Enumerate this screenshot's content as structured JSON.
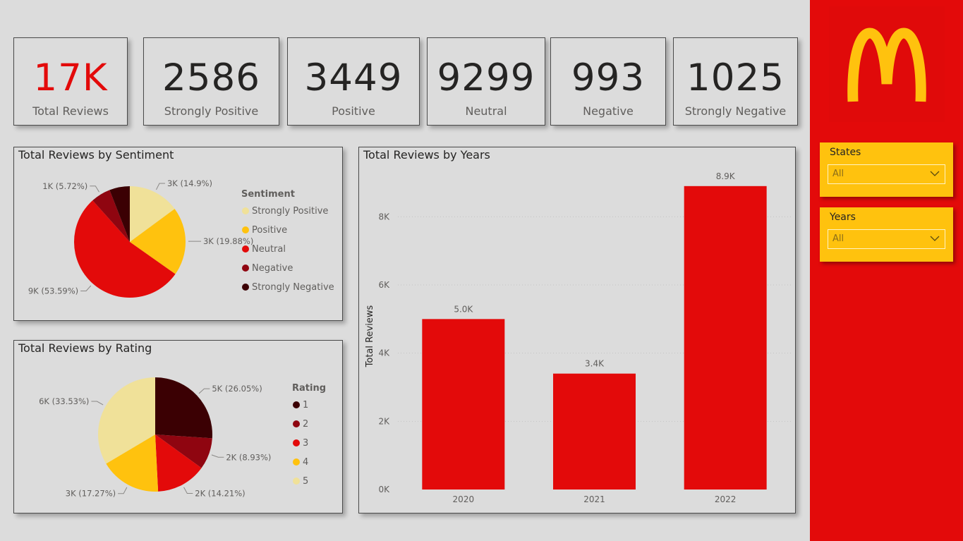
{
  "kpis": [
    {
      "value": "17K",
      "label": "Total Reviews",
      "accent": true
    },
    {
      "value": "2586",
      "label": "Strongly Positive"
    },
    {
      "value": "3449",
      "label": "Positive"
    },
    {
      "value": "9299",
      "label": "Neutral"
    },
    {
      "value": "993",
      "label": "Negative"
    },
    {
      "value": "1025",
      "label": "Strongly Negative"
    }
  ],
  "slicers": {
    "states": {
      "title": "States",
      "value": "All"
    },
    "years": {
      "title": "Years",
      "value": "All"
    }
  },
  "logo": {
    "icon": "mcdonalds-arches-logo",
    "color": "#ffc20e",
    "background": "#e30a0a"
  },
  "colors": {
    "accent_red": "#e30a0a",
    "yellow": "#ffc20e",
    "background": "#dcdcdc"
  },
  "chart_data": [
    {
      "type": "pie",
      "title": "Total Reviews by Sentiment",
      "legend_title": "Sentiment",
      "legend_position": "right",
      "slices": [
        {
          "name": "Strongly Positive",
          "value": 14.9,
          "label": "3K (14.9%)",
          "color": "#f0e199"
        },
        {
          "name": "Positive",
          "value": 19.88,
          "label": "3K (19.88%)",
          "color": "#ffc20e"
        },
        {
          "name": "Neutral",
          "value": 53.59,
          "label": "9K (53.59%)",
          "color": "#e30a0a"
        },
        {
          "name": "Negative",
          "value": 5.72,
          "label": "1K (5.72%)",
          "color": "#8f0510"
        },
        {
          "name": "Strongly Negative",
          "value": 5.91,
          "label": "",
          "color": "#3b0003"
        }
      ]
    },
    {
      "type": "pie",
      "title": "Total Reviews by Rating",
      "legend_title": "Rating",
      "legend_position": "right",
      "slices": [
        {
          "name": "1",
          "value": 26.05,
          "label": "5K (26.05%)",
          "color": "#3b0003"
        },
        {
          "name": "2",
          "value": 8.93,
          "label": "2K (8.93%)",
          "color": "#8f0510"
        },
        {
          "name": "3",
          "value": 14.21,
          "label": "2K (14.21%)",
          "color": "#e30a0a"
        },
        {
          "name": "4",
          "value": 17.27,
          "label": "3K (17.27%)",
          "color": "#ffc20e"
        },
        {
          "name": "5",
          "value": 33.53,
          "label": "6K (33.53%)",
          "color": "#f0e199"
        }
      ]
    },
    {
      "type": "bar",
      "title": "Total Reviews by Years",
      "categories": [
        "2020",
        "2021",
        "2022"
      ],
      "values": [
        5000,
        3400,
        8900
      ],
      "data_labels": [
        "5.0K",
        "3.4K",
        "8.9K"
      ],
      "ylabel": "Total Reviews",
      "xlabel": "",
      "ylim": [
        0,
        9000
      ],
      "yticks": [
        0,
        2000,
        4000,
        6000,
        8000
      ],
      "ytick_labels": [
        "0K",
        "2K",
        "4K",
        "6K",
        "8K"
      ],
      "grid": true,
      "color": "#e30a0a"
    }
  ]
}
